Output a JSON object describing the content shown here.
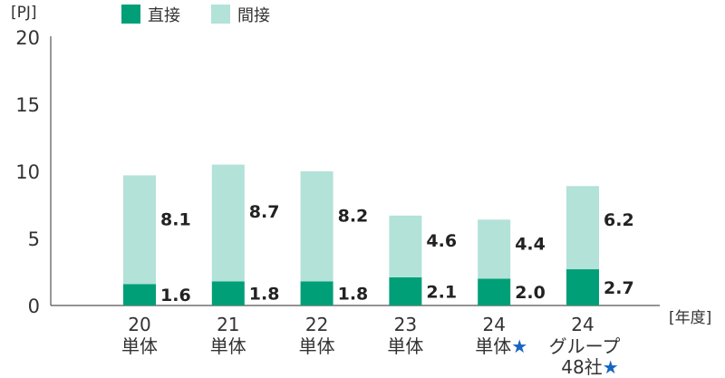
{
  "chart_data": {
    "type": "bar",
    "stacked": true,
    "y_unit": "[PJ]",
    "x_unit": "[年度]",
    "ylim": [
      0,
      20
    ],
    "yticks": [
      "0",
      "5",
      "10",
      "15",
      "20"
    ],
    "legend": {
      "placement": "top"
    },
    "categories": [
      {
        "line1": "20",
        "line2": "単体",
        "line3": "",
        "star": ""
      },
      {
        "line1": "21",
        "line2": "単体",
        "line3": "",
        "star": ""
      },
      {
        "line1": "22",
        "line2": "単体",
        "line3": "",
        "star": ""
      },
      {
        "line1": "23",
        "line2": "単体",
        "line3": "",
        "star": ""
      },
      {
        "line1": "24",
        "line2": "単体",
        "line3": "",
        "star": "★"
      },
      {
        "line1": "24",
        "line2": "グループ",
        "line3": "48社",
        "star": "★"
      }
    ],
    "series": [
      {
        "name": "直接",
        "color": "#009f77",
        "values": [
          1.6,
          1.8,
          1.8,
          2.1,
          2.0,
          2.7
        ],
        "labels": [
          "1.6",
          "1.8",
          "1.8",
          "2.1",
          "2.0",
          "2.7"
        ]
      },
      {
        "name": "間接",
        "color": "#b2e2d8",
        "values": [
          8.1,
          8.7,
          8.2,
          4.6,
          4.4,
          6.2
        ],
        "labels": [
          "8.1",
          "8.7",
          "8.2",
          "4.6",
          "4.4",
          "6.2"
        ]
      }
    ],
    "star_color": "#1565c0"
  }
}
